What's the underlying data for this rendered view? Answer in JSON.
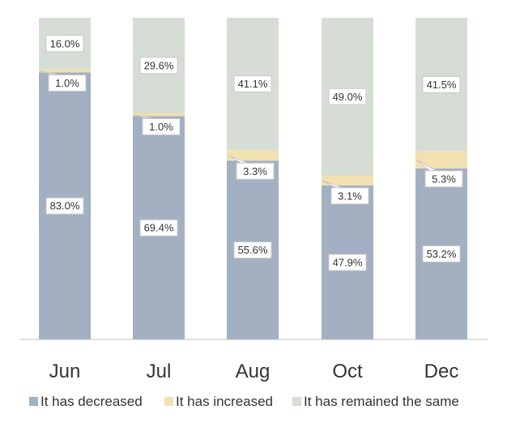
{
  "chart_data": {
    "type": "bar",
    "stacked": true,
    "normalized_percent": true,
    "categories": [
      "Jun",
      "Jul",
      "Aug",
      "Oct",
      "Dec"
    ],
    "series": [
      {
        "name": "It has decreased",
        "color": "#a2b0c2",
        "values": [
          83.0,
          69.4,
          55.6,
          47.9,
          53.2
        ]
      },
      {
        "name": "It has increased",
        "color": "#f1e0b0",
        "values": [
          1.0,
          1.0,
          3.3,
          3.1,
          5.3
        ]
      },
      {
        "name": "It has remained the same",
        "color": "#d6ddd4",
        "values": [
          16.0,
          29.6,
          41.1,
          49.0,
          41.5
        ]
      }
    ],
    "value_format": "percent_1dp",
    "ylim": [
      0,
      100
    ],
    "grid": false,
    "legend_position": "bottom"
  }
}
